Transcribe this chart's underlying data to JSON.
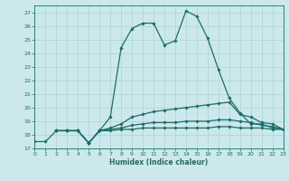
{
  "title": "",
  "xlabel": "Humidex (Indice chaleur)",
  "bg_color": "#cce8ea",
  "grid_color": "#aad4d8",
  "line_color": "#1a6e6a",
  "xlim": [
    0,
    23
  ],
  "ylim": [
    17,
    27.5
  ],
  "xticks": [
    0,
    1,
    2,
    3,
    4,
    5,
    6,
    7,
    8,
    9,
    10,
    11,
    12,
    13,
    14,
    15,
    16,
    17,
    18,
    19,
    20,
    21,
    22,
    23
  ],
  "yticks": [
    17,
    18,
    19,
    20,
    21,
    22,
    23,
    24,
    25,
    26,
    27
  ],
  "line1_x": [
    0,
    1,
    2,
    3,
    4,
    5,
    6,
    7,
    8,
    9,
    10,
    11,
    12,
    13,
    14,
    15,
    16,
    17,
    18,
    19,
    20,
    21,
    22,
    23
  ],
  "line1_y": [
    17.5,
    17.5,
    18.3,
    18.3,
    18.3,
    17.4,
    18.3,
    19.3,
    24.4,
    25.8,
    26.2,
    26.2,
    24.6,
    24.9,
    27.1,
    26.7,
    25.1,
    22.8,
    20.7,
    19.6,
    18.8,
    18.8,
    18.5,
    18.4
  ],
  "line2_x": [
    2,
    3,
    4,
    5,
    6,
    7,
    8,
    9,
    10,
    11,
    12,
    13,
    14,
    15,
    16,
    17,
    18,
    19,
    20,
    21,
    22,
    23
  ],
  "line2_y": [
    18.3,
    18.3,
    18.3,
    17.4,
    18.3,
    18.5,
    18.8,
    19.3,
    19.5,
    19.7,
    19.8,
    19.9,
    20.0,
    20.1,
    20.2,
    20.3,
    20.4,
    19.5,
    19.3,
    18.9,
    18.8,
    18.4
  ],
  "line3_x": [
    2,
    3,
    4,
    5,
    6,
    7,
    8,
    9,
    10,
    11,
    12,
    13,
    14,
    15,
    16,
    17,
    18,
    19,
    20,
    21,
    22,
    23
  ],
  "line3_y": [
    18.3,
    18.3,
    18.3,
    17.4,
    18.3,
    18.4,
    18.5,
    18.7,
    18.8,
    18.9,
    18.9,
    18.9,
    19.0,
    19.0,
    19.0,
    19.1,
    19.1,
    19.0,
    18.9,
    18.7,
    18.6,
    18.4
  ],
  "line4_x": [
    2,
    3,
    4,
    5,
    6,
    7,
    8,
    9,
    10,
    11,
    12,
    13,
    14,
    15,
    16,
    17,
    18,
    19,
    20,
    21,
    22,
    23
  ],
  "line4_y": [
    18.3,
    18.3,
    18.3,
    17.4,
    18.3,
    18.3,
    18.4,
    18.4,
    18.5,
    18.5,
    18.5,
    18.5,
    18.5,
    18.5,
    18.5,
    18.6,
    18.6,
    18.5,
    18.5,
    18.5,
    18.4,
    18.4
  ]
}
